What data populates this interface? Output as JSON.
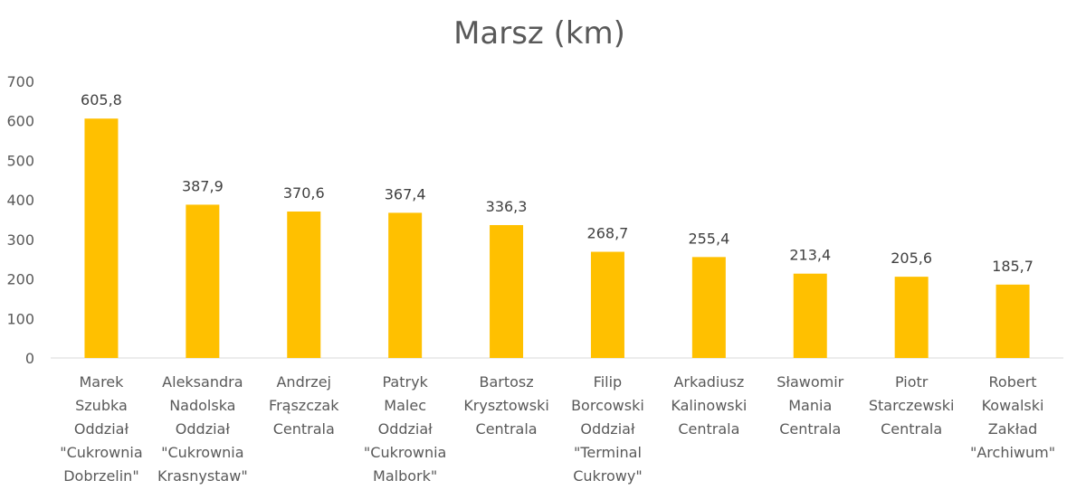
{
  "chart_data": {
    "type": "bar",
    "title": "Marsz (km)",
    "xlabel": "",
    "ylabel": "",
    "ylim": [
      0,
      700
    ],
    "yticks": [
      "0",
      "100",
      "200",
      "300",
      "400",
      "500",
      "600",
      "700"
    ],
    "grid": false,
    "legend": "none",
    "bar_color": "#FFC000",
    "categories": [
      [
        "Marek",
        "Szubka",
        "Oddział",
        "\"Cukrownia",
        "Dobrzelin\""
      ],
      [
        "Aleksandra",
        "Nadolska",
        "Oddział",
        "\"Cukrownia",
        "Krasnystaw\""
      ],
      [
        "Andrzej",
        "Frąszczak",
        "Centrala"
      ],
      [
        "Patryk",
        "Malec",
        "Oddział",
        "\"Cukrownia",
        "Malbork\""
      ],
      [
        "Bartosz",
        "Krysztowski",
        "Centrala"
      ],
      [
        "Filip",
        "Borcowski",
        "Oddział",
        "\"Terminal",
        "Cukrowy\""
      ],
      [
        "Arkadiusz",
        "Kalinowski",
        "Centrala"
      ],
      [
        "Sławomir",
        "Mania",
        "Centrala"
      ],
      [
        "Piotr",
        "Starczewski",
        "Centrala"
      ],
      [
        "Robert",
        "Kowalski",
        "Zakład",
        "\"Archiwum\""
      ]
    ],
    "values": [
      605.8,
      387.9,
      370.6,
      367.4,
      336.3,
      268.7,
      255.4,
      213.4,
      205.6,
      185.7
    ],
    "data_labels": [
      "605,8",
      "387,9",
      "370,6",
      "367,4",
      "336,3",
      "268,7",
      "255,4",
      "213,4",
      "205,6",
      "185,7"
    ]
  }
}
